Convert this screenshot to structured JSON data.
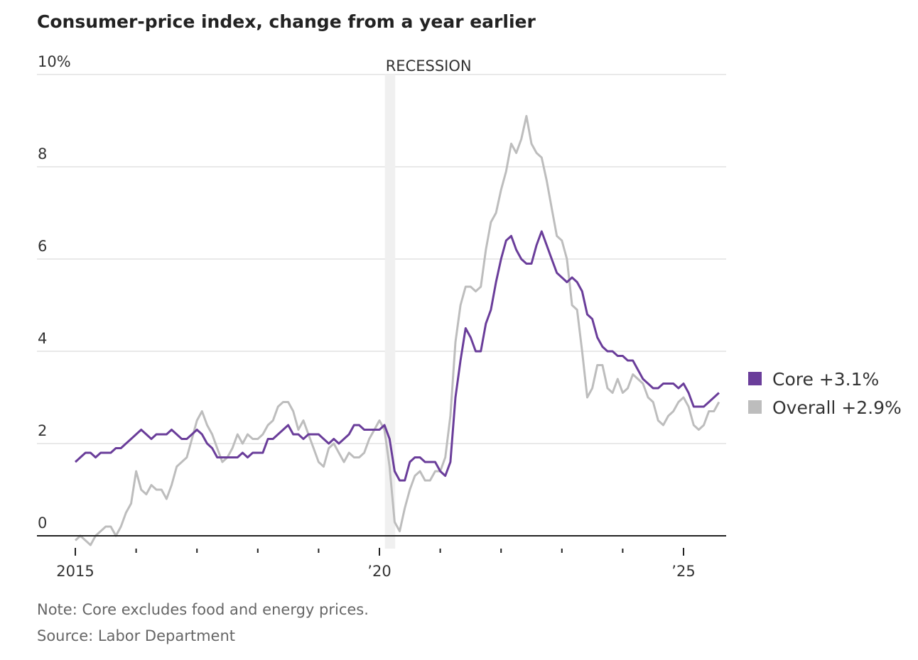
{
  "chart_data": {
    "type": "line",
    "title": "Consumer-price index, change from a year earlier",
    "xlabel": "",
    "ylabel": "",
    "ylim": [
      0,
      10
    ],
    "y_ticks": [
      0,
      2,
      4,
      6,
      8,
      10
    ],
    "y_tick_labels": [
      "0",
      "2",
      "4",
      "6",
      "8",
      "10%"
    ],
    "x_start": "2015-01",
    "x_frequency": "monthly",
    "x_ticks": [
      2015,
      2016,
      2017,
      2018,
      2019,
      2020,
      2021,
      2022,
      2023,
      2024,
      2025
    ],
    "x_tick_labels": {
      "2015": "2015",
      "2020": "’20",
      "2025": "’25"
    },
    "grid": true,
    "recession": {
      "label": "RECESSION",
      "start": 2020.09,
      "end": 2020.26
    },
    "legend_position": "right",
    "series": [
      {
        "name": "Core",
        "legend": "Core +3.1%",
        "color": "#6a3d9a",
        "values": [
          1.6,
          1.7,
          1.8,
          1.8,
          1.7,
          1.8,
          1.8,
          1.8,
          1.9,
          1.9,
          2.0,
          2.1,
          2.2,
          2.3,
          2.2,
          2.1,
          2.2,
          2.2,
          2.2,
          2.3,
          2.2,
          2.1,
          2.1,
          2.2,
          2.3,
          2.2,
          2.0,
          1.9,
          1.7,
          1.7,
          1.7,
          1.7,
          1.7,
          1.8,
          1.7,
          1.8,
          1.8,
          1.8,
          2.1,
          2.1,
          2.2,
          2.3,
          2.4,
          2.2,
          2.2,
          2.1,
          2.2,
          2.2,
          2.2,
          2.1,
          2.0,
          2.1,
          2.0,
          2.1,
          2.2,
          2.4,
          2.4,
          2.3,
          2.3,
          2.3,
          2.3,
          2.4,
          2.1,
          1.4,
          1.2,
          1.2,
          1.6,
          1.7,
          1.7,
          1.6,
          1.6,
          1.6,
          1.4,
          1.3,
          1.6,
          3.0,
          3.8,
          4.5,
          4.3,
          4.0,
          4.0,
          4.6,
          4.9,
          5.5,
          6.0,
          6.4,
          6.5,
          6.2,
          6.0,
          5.9,
          5.9,
          6.3,
          6.6,
          6.3,
          6.0,
          5.7,
          5.6,
          5.5,
          5.6,
          5.5,
          5.3,
          4.8,
          4.7,
          4.3,
          4.1,
          4.0,
          4.0,
          3.9,
          3.9,
          3.8,
          3.8,
          3.6,
          3.4,
          3.3,
          3.2,
          3.2,
          3.3,
          3.3,
          3.3,
          3.2,
          3.3,
          3.1,
          2.8,
          2.8,
          2.8,
          2.9,
          3.0,
          3.1
        ]
      },
      {
        "name": "Overall",
        "legend": "Overall +2.9%",
        "color": "#bdbdbd",
        "values": [
          -0.1,
          0.0,
          -0.1,
          -0.2,
          0.0,
          0.1,
          0.2,
          0.2,
          0.0,
          0.2,
          0.5,
          0.7,
          1.4,
          1.0,
          0.9,
          1.1,
          1.0,
          1.0,
          0.8,
          1.1,
          1.5,
          1.6,
          1.7,
          2.1,
          2.5,
          2.7,
          2.4,
          2.2,
          1.9,
          1.6,
          1.7,
          1.9,
          2.2,
          2.0,
          2.2,
          2.1,
          2.1,
          2.2,
          2.4,
          2.5,
          2.8,
          2.9,
          2.9,
          2.7,
          2.3,
          2.5,
          2.2,
          1.9,
          1.6,
          1.5,
          1.9,
          2.0,
          1.8,
          1.6,
          1.8,
          1.7,
          1.7,
          1.8,
          2.1,
          2.3,
          2.5,
          2.3,
          1.5,
          0.3,
          0.1,
          0.6,
          1.0,
          1.3,
          1.4,
          1.2,
          1.2,
          1.4,
          1.4,
          1.7,
          2.6,
          4.2,
          5.0,
          5.4,
          5.4,
          5.3,
          5.4,
          6.2,
          6.8,
          7.0,
          7.5,
          7.9,
          8.5,
          8.3,
          8.6,
          9.1,
          8.5,
          8.3,
          8.2,
          7.7,
          7.1,
          6.5,
          6.4,
          6.0,
          5.0,
          4.9,
          4.0,
          3.0,
          3.2,
          3.7,
          3.7,
          3.2,
          3.1,
          3.4,
          3.1,
          3.2,
          3.5,
          3.4,
          3.3,
          3.0,
          2.9,
          2.5,
          2.4,
          2.6,
          2.7,
          2.9,
          3.0,
          2.8,
          2.4,
          2.3,
          2.4,
          2.7,
          2.7,
          2.9
        ]
      }
    ],
    "notes": [
      "Note: Core excludes food and energy prices.",
      "Source: Labor Department"
    ]
  }
}
